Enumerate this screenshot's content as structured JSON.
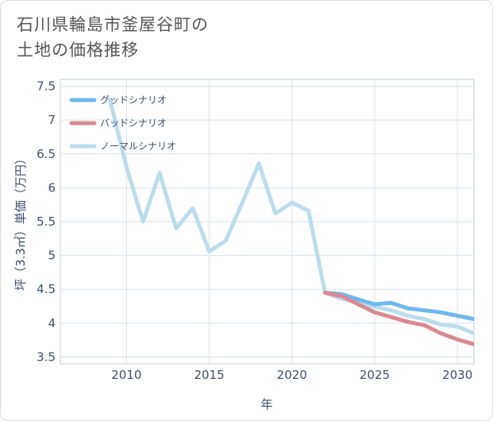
{
  "title": {
    "line1": "石川県輪島市釜屋谷町の",
    "line2": "土地の価格推移"
  },
  "chart_data": {
    "type": "line",
    "title": "石川県輪島市釜屋谷町の土地の価格推移",
    "xlabel": "年",
    "ylabel": "坪（3.3㎡）単価（万円）",
    "xlim": [
      2006,
      2031
    ],
    "ylim": [
      3.4,
      7.6
    ],
    "xticks": [
      2010,
      2015,
      2020,
      2025,
      2030
    ],
    "yticks": [
      3.5,
      4,
      4.5,
      5,
      5.5,
      6,
      6.5,
      7,
      7.5
    ],
    "ytick_labels": [
      "3.5",
      "4",
      "4.5",
      "5",
      "5.5",
      "6",
      "6.5",
      "7",
      "7.5"
    ],
    "grid": true,
    "legend_position": "top-left",
    "series": [
      {
        "name": "グッドシナリオ",
        "color": "#6fb8ee",
        "x": [
          2022,
          2023,
          2024,
          2025,
          2026,
          2027,
          2028,
          2029,
          2030,
          2031
        ],
        "values": [
          4.45,
          4.43,
          4.35,
          4.28,
          4.3,
          4.22,
          4.19,
          4.16,
          4.11,
          4.06
        ]
      },
      {
        "name": "バッドシナリオ",
        "color": "#da8a92",
        "x": [
          2022,
          2023,
          2024,
          2025,
          2026,
          2027,
          2028,
          2029,
          2030,
          2031
        ],
        "values": [
          4.45,
          4.4,
          4.28,
          4.16,
          4.09,
          4.02,
          3.97,
          3.85,
          3.76,
          3.69
        ]
      },
      {
        "name": "ノーマルシナリオ",
        "color": "#bcdcec",
        "x": [
          2009,
          2010,
          2011,
          2012,
          2013,
          2014,
          2015,
          2016,
          2017,
          2018,
          2019,
          2020,
          2021,
          2022,
          2023,
          2024,
          2025,
          2026,
          2027,
          2028,
          2029,
          2030,
          2031
        ],
        "values": [
          7.3,
          6.3,
          5.5,
          6.22,
          5.4,
          5.7,
          5.06,
          5.22,
          5.78,
          6.36,
          5.62,
          5.78,
          5.66,
          4.45,
          4.36,
          4.31,
          4.24,
          4.19,
          4.11,
          4.06,
          3.98,
          3.95,
          3.85
        ]
      }
    ]
  }
}
